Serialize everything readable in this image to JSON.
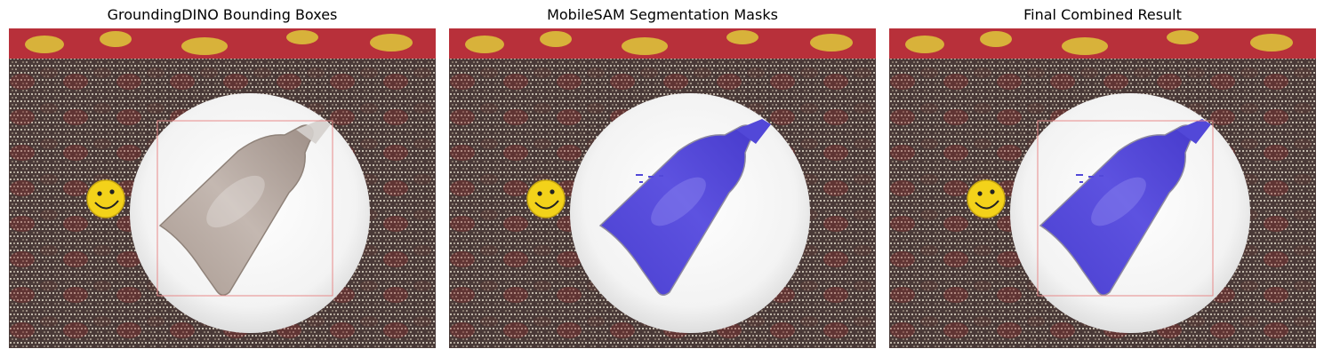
{
  "panels": [
    {
      "title": "GroundingDINO Bounding Boxes",
      "show_box": true,
      "show_mask": false
    },
    {
      "title": "MobileSAM Segmentation Masks",
      "show_box": false,
      "show_mask": true
    },
    {
      "title": "Final Combined Result",
      "show_box": true,
      "show_mask": true
    }
  ],
  "colors": {
    "tablecloth": "#4a3a38",
    "plate": "#f6f6f6",
    "bag": "#b6a9a1",
    "mask": "#4f43d6",
    "bbox": "#e88a8a",
    "smiley": "#f3d21a",
    "fabric_red": "#b8303a",
    "fabric_yellow": "#d8b23a"
  },
  "icons": {
    "smiley": "smiley-sticker-icon"
  }
}
